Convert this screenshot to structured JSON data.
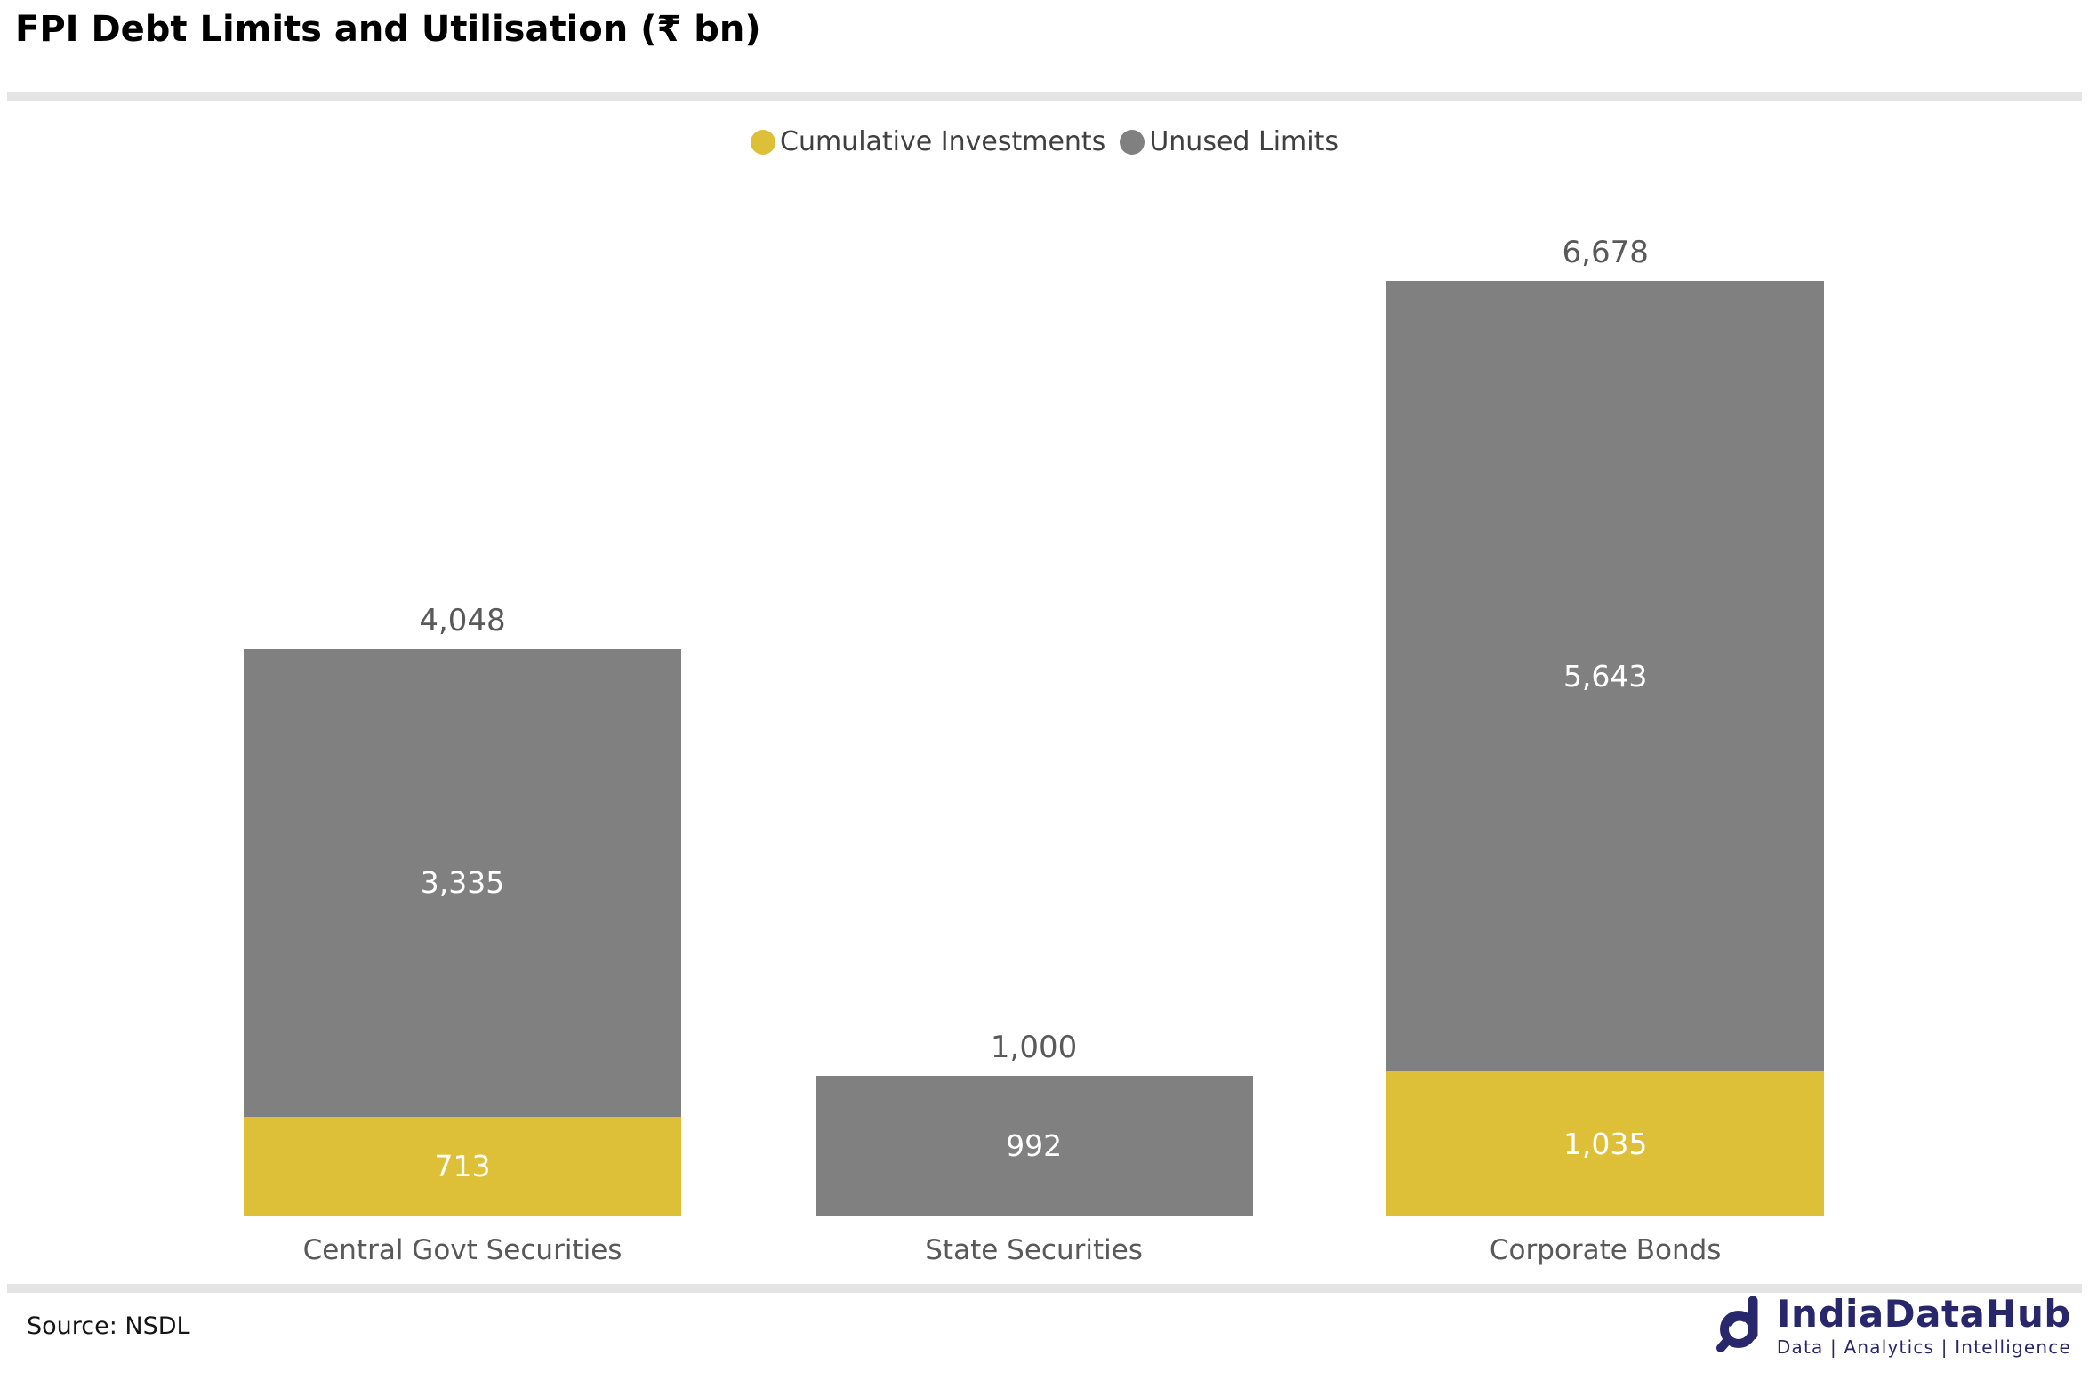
{
  "title": "FPI Debt Limits and Utilisation (₹ bn)",
  "legend": [
    {
      "label": "Cumulative Investments",
      "color": "#DDC038"
    },
    {
      "label": "Unused Limits",
      "color": "#808080"
    }
  ],
  "chart_data": {
    "type": "bar",
    "stacked": true,
    "title": "FPI Debt Limits and Utilisation (₹ bn)",
    "categories": [
      "Central Govt Securities",
      "State Securities",
      "Corporate Bonds"
    ],
    "series": [
      {
        "name": "Cumulative Investments",
        "color": "#DDC038",
        "values": [
          713,
          8,
          1035
        ],
        "labels": [
          "713",
          "",
          "1,035"
        ]
      },
      {
        "name": "Unused Limits",
        "color": "#808080",
        "values": [
          3335,
          992,
          5643
        ],
        "labels": [
          "3,335",
          "992",
          "5,643"
        ]
      }
    ],
    "totals": [
      4048,
      1000,
      6678
    ],
    "total_labels": [
      "4,048",
      "1,000",
      "6,678"
    ],
    "xlabel": "",
    "ylabel": "",
    "ylim": [
      0,
      7000
    ],
    "grid": false,
    "legend_position": "top-center",
    "value_label_color_inside": "#ffffff",
    "value_label_color_total": "#595959"
  },
  "source": {
    "label": "Source: NSDL"
  },
  "branding": {
    "name": "IndiaDataHub",
    "tagline": "Data | Analytics | Intelligence",
    "color": "#28276B",
    "logo_icon": "magnifier-d-icon"
  }
}
